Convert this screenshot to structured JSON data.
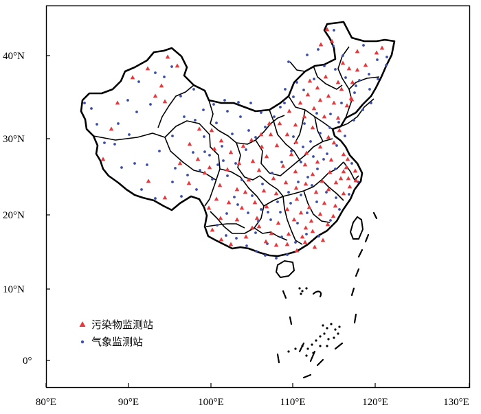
{
  "axes": {
    "x_ticks": [
      "80°E",
      "90°E",
      "100°E",
      "110°E",
      "120°E",
      "130°E"
    ],
    "y_ticks": [
      "40°N",
      "30°N",
      "20°N",
      "10°N",
      "0°"
    ]
  },
  "legend": {
    "items": [
      {
        "label": "污染物监测站",
        "marker": "triangle",
        "color": "#e8383c"
      },
      {
        "label": "气象监测站",
        "marker": "dot",
        "color": "#3b4ea8"
      }
    ]
  },
  "colors": {
    "pollutant_station": "#e8383c",
    "meteorological_station": "#3b4ea8",
    "boundary": "#000000"
  },
  "stations": {
    "pollutant": [
      [
        235,
        125
      ],
      [
        226,
        140
      ],
      [
        240,
        148
      ],
      [
        258,
        96
      ],
      [
        244,
        83
      ],
      [
        215,
        100
      ],
      [
        193,
        113
      ],
      [
        171,
        150
      ],
      [
        162,
        188
      ],
      [
        150,
        232
      ],
      [
        216,
        264
      ],
      [
        240,
        288
      ],
      [
        275,
        267
      ],
      [
        298,
        252
      ],
      [
        312,
        217
      ],
      [
        331,
        247
      ],
      [
        345,
        276
      ],
      [
        352,
        303
      ],
      [
        367,
        332
      ],
      [
        387,
        352
      ],
      [
        402,
        357
      ],
      [
        420,
        341
      ],
      [
        444,
        353
      ],
      [
        455,
        337
      ],
      [
        477,
        327
      ],
      [
        488,
        300
      ],
      [
        500,
        282
      ],
      [
        507,
        260
      ],
      [
        518,
        263
      ],
      [
        504,
        244
      ],
      [
        480,
        251
      ],
      [
        462,
        236
      ],
      [
        446,
        223
      ],
      [
        431,
        207
      ],
      [
        455,
        186
      ],
      [
        472,
        170
      ],
      [
        492,
        172
      ],
      [
        505,
        154
      ],
      [
        511,
        143
      ],
      [
        513,
        120
      ],
      [
        520,
        102
      ],
      [
        532,
        95
      ],
      [
        548,
        77
      ],
      [
        556,
        70
      ],
      [
        508,
        100
      ],
      [
        499,
        92
      ],
      [
        483,
        60
      ],
      [
        467,
        65
      ],
      [
        476,
        43
      ],
      [
        492,
        120
      ],
      [
        478,
        140
      ],
      [
        466,
        146
      ],
      [
        457,
        158
      ],
      [
        443,
        170
      ],
      [
        430,
        182
      ],
      [
        418,
        196
      ],
      [
        403,
        212
      ],
      [
        388,
        228
      ],
      [
        377,
        248
      ],
      [
        362,
        262
      ],
      [
        348,
        238
      ],
      [
        336,
        222
      ],
      [
        322,
        205
      ],
      [
        308,
        190
      ],
      [
        290,
        188
      ],
      [
        276,
        210
      ],
      [
        262,
        238
      ],
      [
        288,
        232
      ],
      [
        305,
        244
      ],
      [
        320,
        270
      ],
      [
        333,
        295
      ],
      [
        345,
        320
      ],
      [
        358,
        345
      ],
      [
        374,
        318
      ],
      [
        388,
        301
      ],
      [
        402,
        282
      ],
      [
        416,
        266
      ],
      [
        430,
        250
      ],
      [
        445,
        268
      ],
      [
        460,
        280
      ],
      [
        472,
        296
      ],
      [
        485,
        315
      ],
      [
        466,
        312
      ],
      [
        450,
        302
      ],
      [
        432,
        290
      ],
      [
        418,
        305
      ],
      [
        405,
        325
      ],
      [
        395,
        340
      ],
      [
        428,
        320
      ],
      [
        440,
        345
      ],
      [
        458,
        360
      ],
      [
        470,
        350
      ],
      [
        445,
        332
      ],
      [
        424,
        225
      ],
      [
        412,
        242
      ],
      [
        398,
        260
      ],
      [
        384,
        278
      ],
      [
        371,
        295
      ],
      [
        357,
        280
      ],
      [
        368,
        235
      ],
      [
        381,
        214
      ],
      [
        394,
        196
      ],
      [
        407,
        180
      ],
      [
        421,
        162
      ],
      [
        437,
        150
      ],
      [
        448,
        138
      ],
      [
        462,
        128
      ],
      [
        451,
        118
      ],
      [
        486,
        208
      ],
      [
        494,
        190
      ],
      [
        500,
        225
      ],
      [
        496,
        260
      ],
      [
        509,
        272
      ],
      [
        517,
        249
      ],
      [
        506,
        232
      ],
      [
        321,
        318
      ],
      [
        309,
        335
      ],
      [
        322,
        349
      ],
      [
        336,
        356
      ],
      [
        304,
        303
      ],
      [
        315,
        290
      ],
      [
        500,
        250
      ],
      [
        489,
        266
      ],
      [
        478,
        276
      ],
      [
        377,
        330
      ],
      [
        392,
        180
      ],
      [
        380,
        196
      ],
      [
        366,
        204
      ],
      [
        354,
        213
      ],
      [
        444,
        240
      ],
      [
        455,
        254
      ],
      [
        469,
        264
      ],
      [
        482,
        233
      ],
      [
        431,
        274
      ],
      [
        438,
        310
      ],
      [
        453,
        322
      ],
      [
        418,
        356
      ],
      [
        432,
        365
      ],
      [
        478,
        200
      ],
      [
        466,
        214
      ],
      [
        486,
        150
      ],
      [
        520,
        75
      ],
      [
        512,
        145
      ],
      [
        497,
        130
      ],
      [
        474,
        112
      ]
    ],
    "meteorological": [
      [
        226,
        106
      ],
      [
        202,
        119
      ],
      [
        219,
        152
      ],
      [
        239,
        112
      ],
      [
        263,
        140
      ],
      [
        250,
        97
      ],
      [
        282,
        130
      ],
      [
        186,
        146
      ],
      [
        199,
        163
      ],
      [
        172,
        180
      ],
      [
        152,
        208
      ],
      [
        177,
        244
      ],
      [
        196,
        238
      ],
      [
        206,
        276
      ],
      [
        226,
        289
      ],
      [
        251,
        265
      ],
      [
        264,
        286
      ],
      [
        286,
        276
      ],
      [
        309,
        261
      ],
      [
        325,
        234
      ],
      [
        341,
        287
      ],
      [
        352,
        262
      ],
      [
        372,
        339
      ],
      [
        389,
        355
      ],
      [
        410,
        345
      ],
      [
        430,
        353
      ],
      [
        446,
        341
      ],
      [
        464,
        344
      ],
      [
        481,
        321
      ],
      [
        494,
        305
      ],
      [
        508,
        283
      ],
      [
        521,
        265
      ],
      [
        512,
        238
      ],
      [
        488,
        246
      ],
      [
        471,
        232
      ],
      [
        456,
        228
      ],
      [
        441,
        214
      ],
      [
        427,
        199
      ],
      [
        443,
        180
      ],
      [
        461,
        165
      ],
      [
        481,
        166
      ],
      [
        497,
        150
      ],
      [
        516,
        135
      ],
      [
        523,
        117
      ],
      [
        537,
        108
      ],
      [
        549,
        87
      ],
      [
        563,
        83
      ],
      [
        562,
        95
      ],
      [
        529,
        66
      ],
      [
        499,
        81
      ],
      [
        485,
        67
      ],
      [
        486,
        44
      ],
      [
        463,
        72
      ],
      [
        447,
        80
      ],
      [
        420,
        90
      ],
      [
        432,
        120
      ],
      [
        415,
        130
      ],
      [
        408,
        156
      ],
      [
        380,
        164
      ],
      [
        365,
        150
      ],
      [
        347,
        149
      ],
      [
        331,
        162
      ],
      [
        315,
        179
      ],
      [
        297,
        199
      ],
      [
        281,
        222
      ],
      [
        298,
        221
      ],
      [
        317,
        240
      ],
      [
        331,
        256
      ],
      [
        343,
        238
      ],
      [
        358,
        218
      ],
      [
        372,
        200
      ],
      [
        386,
        185
      ],
      [
        399,
        170
      ],
      [
        414,
        150
      ],
      [
        427,
        141
      ],
      [
        442,
        131
      ],
      [
        457,
        115
      ],
      [
        472,
        96
      ],
      [
        488,
        101
      ],
      [
        503,
        113
      ],
      [
        518,
        125
      ],
      [
        538,
        130
      ],
      [
        550,
        115
      ],
      [
        540,
        150
      ],
      [
        528,
        160
      ],
      [
        515,
        175
      ],
      [
        502,
        198
      ],
      [
        490,
        212
      ],
      [
        476,
        224
      ],
      [
        462,
        246
      ],
      [
        448,
        258
      ],
      [
        434,
        265
      ],
      [
        420,
        280
      ],
      [
        404,
        294
      ],
      [
        390,
        309
      ],
      [
        376,
        322
      ],
      [
        361,
        310
      ],
      [
        346,
        298
      ],
      [
        330,
        311
      ],
      [
        316,
        328
      ],
      [
        329,
        343
      ],
      [
        344,
        347
      ],
      [
        359,
        358
      ],
      [
        373,
        366
      ],
      [
        386,
        372
      ],
      [
        402,
        376
      ],
      [
        418,
        371
      ],
      [
        433,
        325
      ],
      [
        447,
        310
      ],
      [
        461,
        294
      ],
      [
        475,
        280
      ],
      [
        489,
        288
      ],
      [
        454,
        270
      ],
      [
        438,
        284
      ],
      [
        423,
        296
      ],
      [
        408,
        309
      ],
      [
        394,
        320
      ],
      [
        380,
        305
      ],
      [
        367,
        285
      ],
      [
        382,
        268
      ],
      [
        396,
        252
      ],
      [
        410,
        236
      ],
      [
        424,
        220
      ],
      [
        438,
        236
      ],
      [
        452,
        206
      ],
      [
        466,
        194
      ],
      [
        480,
        186
      ],
      [
        493,
        178
      ],
      [
        268,
        170
      ],
      [
        251,
        198
      ],
      [
        232,
        220
      ],
      [
        214,
        240
      ],
      [
        188,
        196
      ],
      [
        167,
        210
      ],
      [
        141,
        181
      ],
      [
        133,
        158
      ],
      [
        123,
        150
      ],
      [
        284,
        175
      ],
      [
        296,
        160
      ],
      [
        311,
        152
      ],
      [
        327,
        146
      ],
      [
        350,
        170
      ],
      [
        362,
        190
      ],
      [
        338,
        195
      ],
      [
        323,
        213
      ],
      [
        305,
        226
      ],
      [
        291,
        248
      ],
      [
        273,
        255
      ],
      [
        255,
        245
      ]
    ]
  }
}
